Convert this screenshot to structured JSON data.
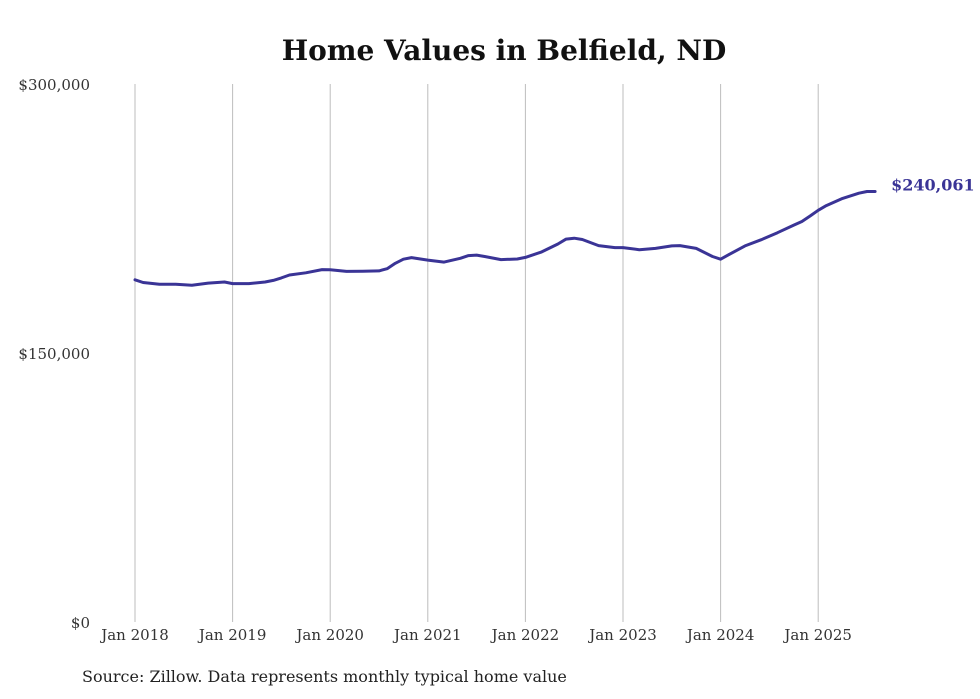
{
  "chart_data": {
    "type": "line",
    "title": "Home Values in Belfield, ND",
    "xlabel": "",
    "ylabel": "",
    "ylim": [
      0,
      300000
    ],
    "y_ticks": [
      {
        "value": 0,
        "label": "$0"
      },
      {
        "value": 150000,
        "label": "$150,000"
      },
      {
        "value": 300000,
        "label": "$300,000"
      }
    ],
    "x_ticks": [
      {
        "value": 2018.0,
        "label": "Jan 2018"
      },
      {
        "value": 2019.0,
        "label": "Jan 2019"
      },
      {
        "value": 2020.0,
        "label": "Jan 2020"
      },
      {
        "value": 2021.0,
        "label": "Jan 2021"
      },
      {
        "value": 2022.0,
        "label": "Jan 2022"
      },
      {
        "value": 2023.0,
        "label": "Jan 2023"
      },
      {
        "value": 2024.0,
        "label": "Jan 2024"
      },
      {
        "value": 2025.0,
        "label": "Jan 2025"
      }
    ],
    "xlim": [
      2018.0,
      2025.6
    ],
    "grid": "vertical",
    "series": [
      {
        "name": "Typical home value",
        "color": "#3a3496",
        "end_label": "$240,061",
        "x": [
          2018.0,
          2018.083,
          2018.25,
          2018.417,
          2018.583,
          2018.75,
          2018.917,
          2019.0,
          2019.167,
          2019.333,
          2019.417,
          2019.5,
          2019.583,
          2019.75,
          2019.917,
          2020.0,
          2020.167,
          2020.333,
          2020.5,
          2020.583,
          2020.667,
          2020.75,
          2020.833,
          2021.0,
          2021.167,
          2021.333,
          2021.417,
          2021.5,
          2021.583,
          2021.75,
          2021.917,
          2022.0,
          2022.167,
          2022.333,
          2022.417,
          2022.5,
          2022.583,
          2022.75,
          2022.917,
          2023.0,
          2023.167,
          2023.333,
          2023.5,
          2023.583,
          2023.75,
          2023.917,
          2024.0,
          2024.083,
          2024.25,
          2024.417,
          2024.583,
          2024.75,
          2024.833,
          2024.917,
          2025.0,
          2025.083,
          2025.25,
          2025.417,
          2025.5,
          2025.583
        ],
        "values": [
          190800,
          189300,
          188300,
          188300,
          187800,
          189000,
          189600,
          188700,
          188700,
          189600,
          190500,
          191900,
          193500,
          194700,
          196500,
          196400,
          195500,
          195600,
          195800,
          197000,
          200000,
          202300,
          203200,
          201800,
          200700,
          202800,
          204300,
          204600,
          203800,
          202100,
          202400,
          203300,
          206400,
          210800,
          213500,
          214000,
          213300,
          209900,
          208800,
          208800,
          207600,
          208300,
          209700,
          209900,
          208300,
          203800,
          202300,
          204800,
          209700,
          213200,
          217100,
          221300,
          223300,
          226400,
          229600,
          232200,
          236200,
          239100,
          240061,
          240061
        ]
      }
    ]
  },
  "source": "Source: Zillow. Data represents monthly typical home value"
}
